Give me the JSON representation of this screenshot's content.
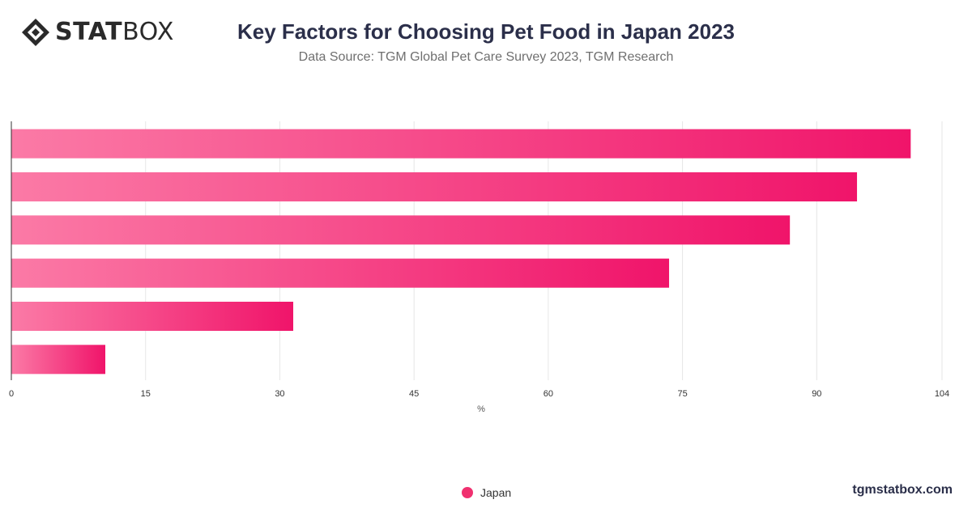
{
  "header": {
    "logo_text_bold": "STAT",
    "logo_text_light": "BOX",
    "title": "Key Factors for Choosing Pet Food in Japan 2023",
    "subtitle": "Data Source: TGM Global Pet Care Survey 2023, TGM Research"
  },
  "chart_data": {
    "type": "bar",
    "orientation": "horizontal",
    "title": "Key Factors for Choosing Pet Food in Japan 2023",
    "subtitle": "Data Source: TGM Global Pet Care Survey 2023, TGM Research",
    "categories": [
      "",
      "",
      "",
      "",
      "",
      ""
    ],
    "series": [
      {
        "name": "Japan",
        "values": [
          100.5,
          94.5,
          87,
          73.5,
          31.5,
          10.5
        ]
      }
    ],
    "xlabel": "%",
    "ylabel": "",
    "xlim": [
      0,
      104
    ],
    "x_ticks": [
      0,
      15,
      30,
      45,
      60,
      75,
      90,
      104
    ],
    "grid": true,
    "legend_position": "bottom-center",
    "colors": {
      "bar_start": "#fb7aa6",
      "bar_end": "#f0146a",
      "grid": "#e6e6e6",
      "axis": "#333333"
    }
  },
  "legend": {
    "label": "Japan",
    "color": "#f0306f"
  },
  "footer": {
    "site": "tgmstatbox.com"
  }
}
